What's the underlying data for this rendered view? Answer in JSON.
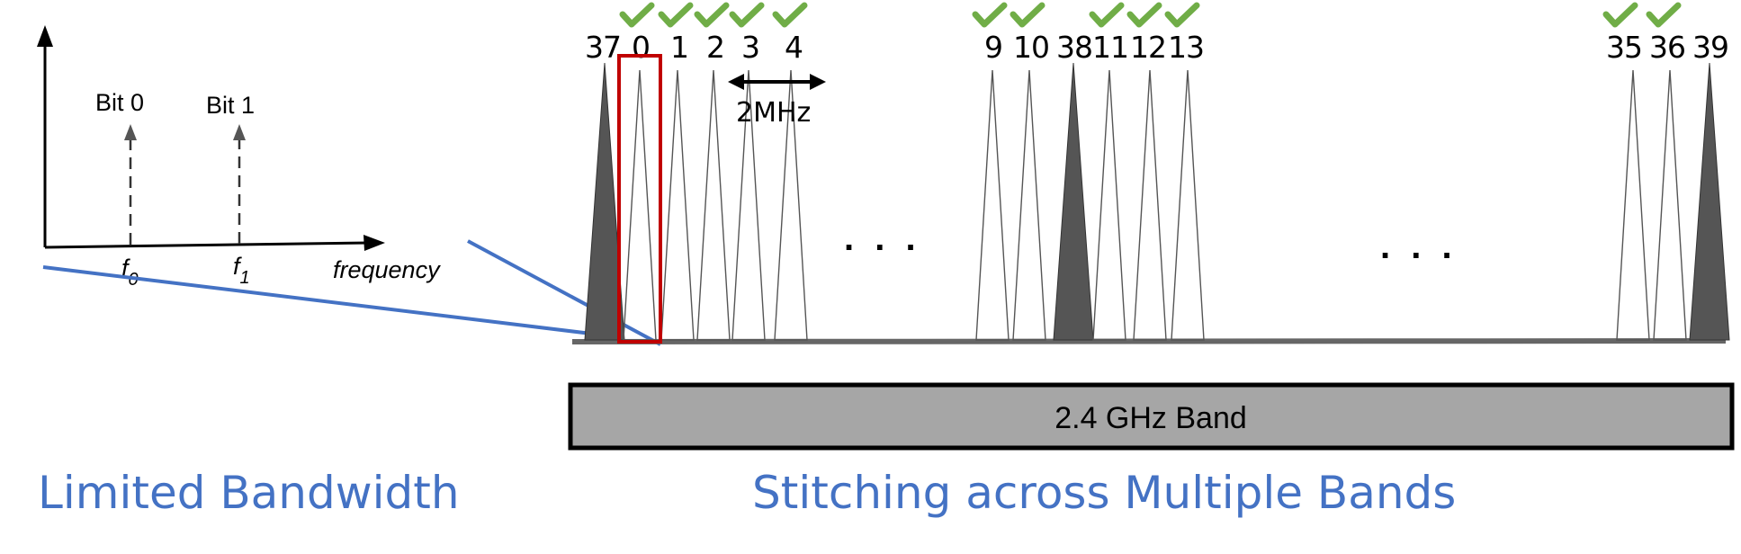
{
  "colors": {
    "caption": "#4472c4",
    "zoom_line": "#4472c4",
    "highlight": "#c00000",
    "check": "#70ad47",
    "advertising_fill": "#555555",
    "band_fill": "#a6a6a6"
  },
  "fsk_plot": {
    "bit0_label": "Bit 0",
    "bit1_label": "Bit 1",
    "f0_label": "f",
    "f0_sub": "0",
    "f1_label": "f",
    "f1_sub": "1",
    "x_axis_label": "frequency"
  },
  "spectrum": {
    "channel_labels": [
      "37",
      "0",
      "1",
      "2",
      "3",
      "4",
      "9",
      "10",
      "38",
      "11",
      "12",
      "13",
      "35",
      "36",
      "39"
    ],
    "advertising_channels": [
      "37",
      "38",
      "39"
    ],
    "checked_channels": [
      "0",
      "1",
      "2",
      "3",
      "4",
      "9",
      "10",
      "11",
      "12",
      "13",
      "35",
      "36"
    ],
    "highlighted_channel": "0",
    "spacing_label": "2MHz",
    "ellipsis": ". . .",
    "check_icon": "check-icon"
  },
  "band_label": "2.4 GHz Band",
  "captions": {
    "left": "Limited Bandwidth",
    "right": "Stitching across Multiple Bands"
  }
}
